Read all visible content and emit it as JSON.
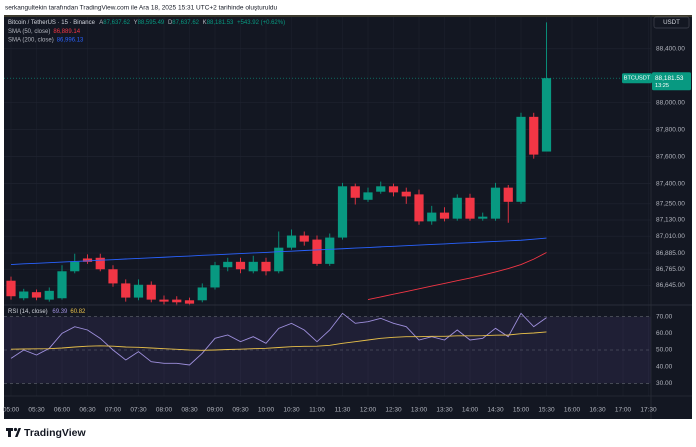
{
  "header": "serkangultekin tarafından TradingView.com ile Ara 18, 2025 15:31 UTC+2 tarihinde oluşturuldu",
  "footer": "TradingView",
  "chart_data": [
    {
      "type": "candlestick",
      "title": "Bitcoin / TetherUS · 15 · Binance",
      "ohlc_labels": [
        {
          "key": "A",
          "value": "87,637.62"
        },
        {
          "key": "Y",
          "value": "88,595.49"
        },
        {
          "key": "D",
          "value": "87,637.62"
        },
        {
          "key": "K",
          "value": "88,181.53"
        }
      ],
      "change_label": "+543.92 (+0.62%)",
      "currency": "USDT",
      "symbol_tag": "BTCUSDT",
      "last_price_label": "88,181.53",
      "countdown": "13:25",
      "categories": [
        "05:00",
        null,
        "05:30",
        null,
        "06:00",
        null,
        "06:30",
        null,
        "07:00",
        null,
        "07:30",
        null,
        "08:00",
        null,
        "08:30",
        null,
        "09:00",
        null,
        "09:30",
        null,
        "10:00",
        null,
        "10:30",
        null,
        "11:00",
        null,
        "11:30",
        null,
        "12:00",
        null,
        "12:30",
        null,
        "13:00",
        null,
        "13:30",
        null,
        "14:00",
        null,
        "14:30",
        null,
        "15:00",
        null,
        "15:30",
        null,
        "16:00",
        null,
        "16:30",
        null,
        "17:00",
        null,
        "17:30"
      ],
      "open": [
        86680,
        86550,
        86595,
        86540,
        86550,
        86750,
        86845,
        86850,
        86765,
        86660,
        86555,
        86650,
        86540,
        86540,
        86535,
        86535,
        86630,
        86780,
        86820,
        86750,
        86820,
        86750,
        86925,
        87015,
        86985,
        86805,
        87000,
        87380,
        87280,
        87340,
        87380,
        87340,
        87320,
        87120,
        87185,
        87140,
        87295,
        87140,
        87140,
        87370,
        87265,
        87895,
        87637.62,
        null,
        null,
        null,
        null,
        null,
        null,
        null,
        null
      ],
      "high": [
        86710,
        86620,
        86615,
        86630,
        86795,
        86880,
        86875,
        86880,
        86795,
        86690,
        86690,
        86675,
        86570,
        86565,
        86555,
        86660,
        86820,
        86850,
        86850,
        86865,
        86850,
        87045,
        87060,
        87045,
        87015,
        87030,
        87405,
        87400,
        87370,
        87415,
        87400,
        87370,
        87355,
        87235,
        87225,
        87320,
        87325,
        87185,
        87405,
        87390,
        87925,
        87925,
        88595.49,
        null,
        null,
        null,
        null,
        null,
        null,
        null,
        null
      ],
      "low": [
        86540,
        86535,
        86535,
        86525,
        86540,
        86735,
        86805,
        86750,
        86635,
        86525,
        86535,
        86520,
        86505,
        86495,
        86495,
        86520,
        86615,
        86750,
        86735,
        86735,
        86720,
        86735,
        86910,
        86940,
        86790,
        86790,
        86985,
        87245,
        87265,
        87325,
        87305,
        87250,
        87095,
        87095,
        87120,
        87125,
        87125,
        87125,
        87125,
        87110,
        87250,
        87585,
        87637.62,
        null,
        null,
        null,
        null,
        null,
        null,
        null,
        null
      ],
      "close": [
        86565,
        86600,
        86555,
        86605,
        86750,
        86820,
        86820,
        86765,
        86660,
        86555,
        86650,
        86540,
        86525,
        86520,
        86510,
        86630,
        86795,
        86820,
        86765,
        86820,
        86750,
        86925,
        87015,
        86970,
        86805,
        87000,
        87380,
        87295,
        87335,
        87380,
        87335,
        87305,
        87120,
        87185,
        87140,
        87295,
        87140,
        87155,
        87370,
        87265,
        87895,
        87615,
        88181.53,
        null,
        null,
        null,
        null,
        null,
        null,
        null,
        null
      ],
      "up_color": "#089981",
      "down_color": "#f23645",
      "series": [
        {
          "name": "SMA (50, close)",
          "last_label": "86,889.14",
          "color": "#f23645",
          "values": [
            null,
            null,
            null,
            null,
            null,
            null,
            null,
            null,
            null,
            null,
            null,
            null,
            null,
            null,
            null,
            null,
            null,
            null,
            null,
            null,
            null,
            null,
            null,
            null,
            null,
            null,
            null,
            null,
            86540,
            86560,
            86580,
            86600,
            86620,
            86640,
            86660,
            86680,
            86700,
            86722,
            86745,
            86770,
            86800,
            86840,
            86889.14,
            null,
            null,
            null,
            null,
            null,
            null,
            null,
            null
          ]
        },
        {
          "name": "SMA (200, close)",
          "last_label": "86,996.13",
          "color": "#2962ff",
          "values": [
            86800,
            86805,
            86809,
            86814,
            86818,
            86823,
            86827,
            86832,
            86836,
            86841,
            86845,
            86850,
            86854,
            86859,
            86863,
            86868,
            86872,
            86877,
            86881,
            86886,
            86890,
            86895,
            86899,
            86904,
            86908,
            86913,
            86917,
            86922,
            86926,
            86931,
            86935,
            86940,
            86944,
            86949,
            86953,
            86958,
            86962,
            86967,
            86971,
            86976,
            86980,
            86988,
            86996.13,
            null,
            null,
            null,
            null,
            null,
            null,
            null,
            null
          ]
        }
      ],
      "ylim": [
        86500,
        88650
      ],
      "yticks": [
        {
          "value": 88400,
          "label": "88,400.00"
        },
        {
          "value": 88000,
          "label": "88,000.00"
        },
        {
          "value": 87800,
          "label": "87,800.00"
        },
        {
          "value": 87600,
          "label": "87,600.00"
        },
        {
          "value": 87400,
          "label": "87,400.00"
        },
        {
          "value": 87250,
          "label": "87,250.00"
        },
        {
          "value": 87130,
          "label": "87,130.00"
        },
        {
          "value": 87010,
          "label": "87,010.00"
        },
        {
          "value": 86885,
          "label": "86,885.00"
        },
        {
          "value": 86765,
          "label": "86,765.00"
        },
        {
          "value": 86645,
          "label": "86,645.00"
        }
      ],
      "grid": true
    },
    {
      "type": "line",
      "title": "RSI (14, close)",
      "series": [
        {
          "last_label": "69.39",
          "color": "#9e8fdc",
          "values": [
            45,
            50,
            47,
            51,
            60,
            64,
            62,
            57,
            50,
            44,
            49,
            43,
            42,
            42,
            41,
            48,
            57,
            59,
            55,
            58,
            54,
            63,
            66,
            62,
            55,
            62,
            72,
            66,
            67,
            69,
            66,
            64,
            56,
            58,
            56,
            62,
            56,
            57,
            63,
            58,
            72,
            64,
            69.39,
            null,
            null,
            null,
            null,
            null,
            null,
            null,
            null
          ]
        },
        {
          "last_label": "60.82",
          "color": "#e8c04a",
          "values": [
            50.5,
            50.6,
            50.7,
            50.8,
            51.2,
            51.8,
            52.3,
            52.5,
            52.3,
            51.8,
            51.6,
            51.2,
            50.8,
            50.4,
            50.0,
            49.8,
            50.0,
            50.3,
            50.5,
            50.8,
            51.0,
            51.5,
            52.0,
            52.2,
            52.3,
            52.8,
            54.0,
            55.0,
            56.0,
            57.0,
            57.6,
            58.0,
            58.0,
            58.2,
            58.2,
            58.5,
            58.5,
            58.6,
            58.9,
            59.0,
            59.8,
            60.2,
            60.82,
            null,
            null,
            null,
            null,
            null,
            null,
            null,
            null
          ]
        }
      ],
      "band": [
        30,
        70
      ],
      "levels": [
        70,
        50,
        30
      ],
      "ylim": [
        23,
        77
      ],
      "yticks": [
        {
          "value": 70,
          "label": "70.00"
        },
        {
          "value": 60,
          "label": "60.00"
        },
        {
          "value": 50,
          "label": "50.00"
        },
        {
          "value": 40,
          "label": "40.00"
        },
        {
          "value": 30,
          "label": "30.00"
        }
      ],
      "grid": true
    }
  ]
}
